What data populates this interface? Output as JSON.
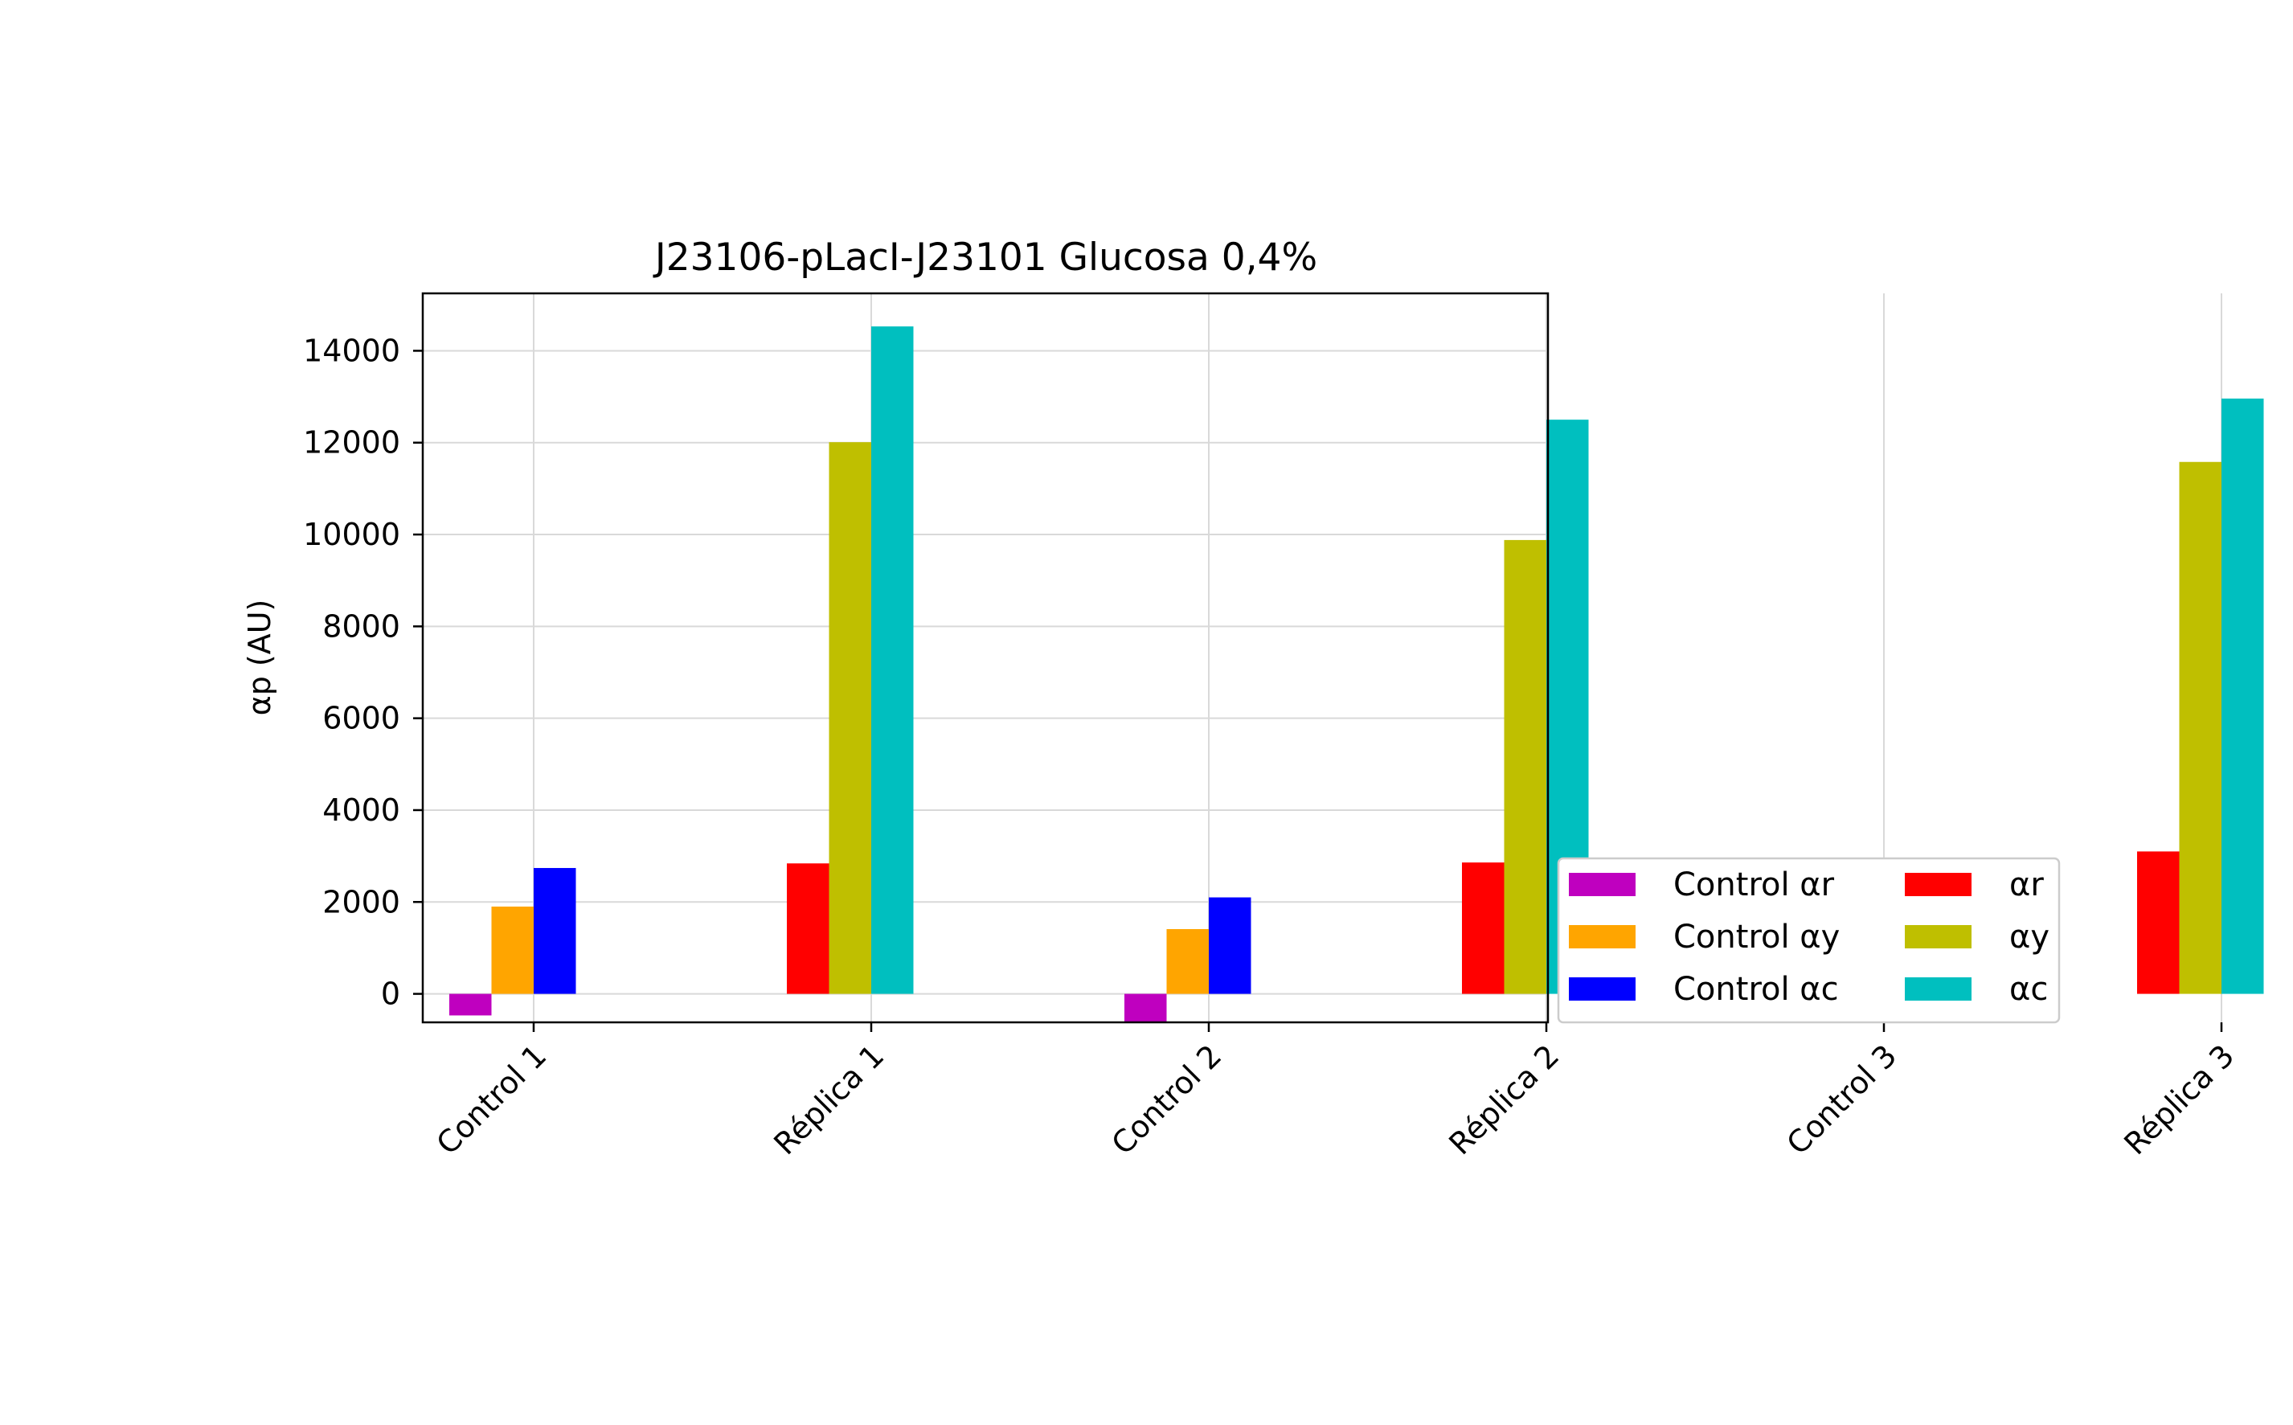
{
  "chart_data": {
    "type": "bar",
    "title": "J23106-pLacI-J23101 Glucosa 0,4%",
    "ylabel": "αp (AU)",
    "xlabel": "",
    "categories": [
      "Control 1",
      "Réplica 1",
      "Control 2",
      "Réplica 2",
      "Control 3",
      "Réplica 3"
    ],
    "yticks": [
      0,
      2000,
      4000,
      6000,
      8000,
      10000,
      12000,
      14000
    ],
    "ylim": [
      -620,
      15250
    ],
    "grid": true,
    "legend_position": "outside-right-bottom",
    "series": [
      {
        "name": "Control αr",
        "color": "#bf00bf",
        "values": [
          -470,
          null,
          -610,
          null,
          -620,
          null
        ]
      },
      {
        "name": "Control αy",
        "color": "#ffa500",
        "values": [
          1900,
          null,
          1410,
          null,
          1740,
          null
        ]
      },
      {
        "name": "Control αc",
        "color": "#0000ff",
        "values": [
          2740,
          null,
          2100,
          null,
          2490,
          null
        ]
      },
      {
        "name": "αr",
        "color": "#ff0000",
        "values": [
          null,
          2840,
          null,
          2860,
          null,
          3100
        ]
      },
      {
        "name": "αy",
        "color": "#bfbf00",
        "values": [
          null,
          12010,
          null,
          9880,
          null,
          11580
        ]
      },
      {
        "name": "αc",
        "color": "#00bfbf",
        "values": [
          null,
          14530,
          null,
          12500,
          null,
          12960
        ]
      }
    ]
  }
}
